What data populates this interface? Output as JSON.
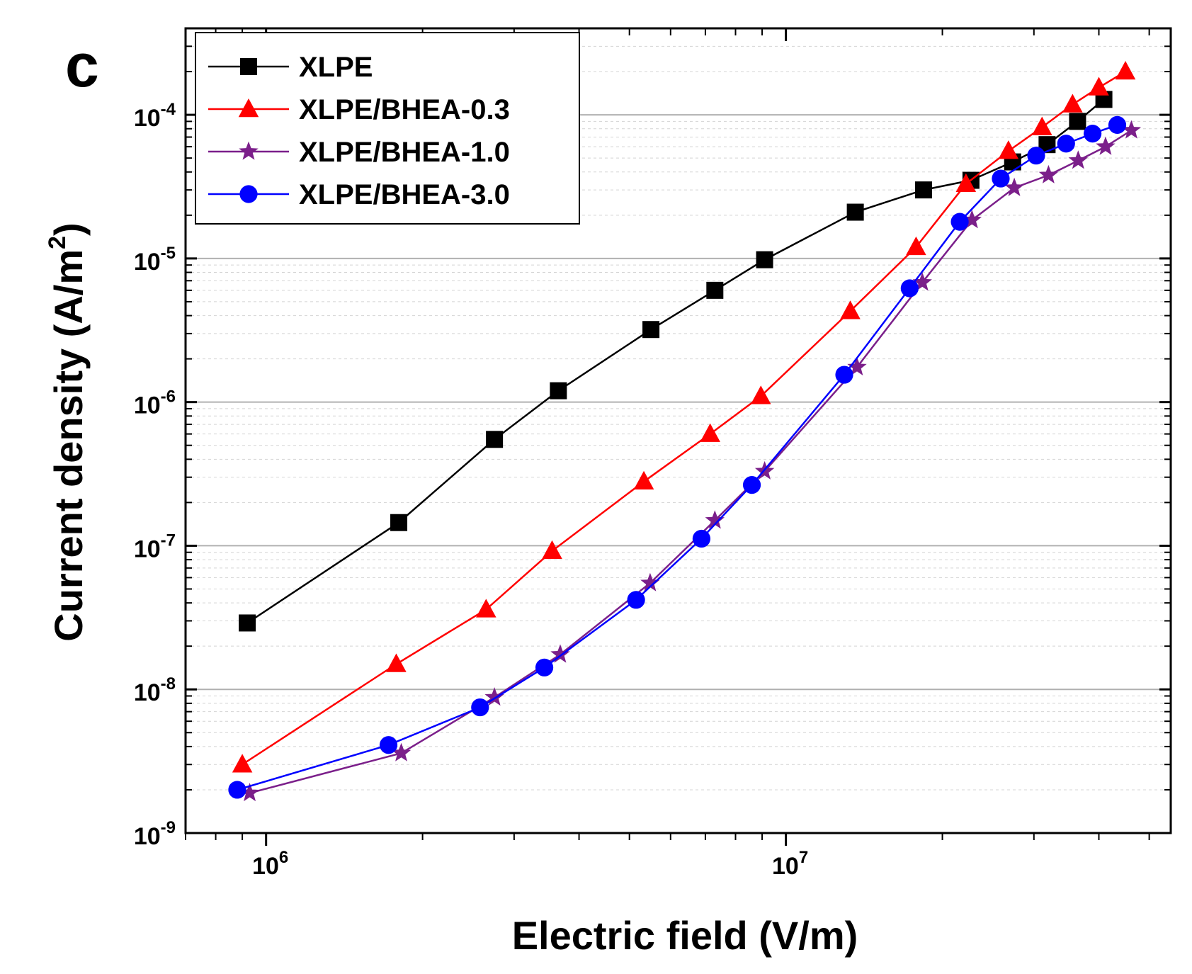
{
  "chart_data": {
    "type": "line",
    "panel_label": "c",
    "xlabel": "Electric field (V/m)",
    "ylabel_main": "Current density (A/m",
    "ylabel_sup": "2",
    "ylabel_end": ")",
    "xscale": "log",
    "yscale": "log",
    "xlim": [
      700000,
      55000000
    ],
    "ylim": [
      1e-09,
      0.0004
    ],
    "x_ticks": [
      {
        "value": 1000000,
        "base": "10",
        "exp": "6"
      },
      {
        "value": 10000000,
        "base": "10",
        "exp": "7"
      }
    ],
    "y_ticks": [
      {
        "value": 1e-09,
        "base": "10",
        "exp": "-9"
      },
      {
        "value": 1e-08,
        "base": "10",
        "exp": "-8"
      },
      {
        "value": 1e-07,
        "base": "10",
        "exp": "-7"
      },
      {
        "value": 1e-06,
        "base": "10",
        "exp": "-6"
      },
      {
        "value": 1e-05,
        "base": "10",
        "exp": "-5"
      },
      {
        "value": 0.0001,
        "base": "10",
        "exp": "-4"
      }
    ],
    "grid": true,
    "legend_position": "top-left",
    "series": [
      {
        "name": "XLPE",
        "color": "#000000",
        "marker": "square",
        "x": [
          920000,
          1800000,
          2750000,
          3650000,
          5500000,
          7300000,
          9100000,
          13600000,
          18400000,
          22700000,
          27300000,
          31800000,
          36400000,
          40900000
        ],
        "y": [
          2.9e-08,
          1.45e-07,
          5.5e-07,
          1.2e-06,
          3.2e-06,
          6e-06,
          9.8e-06,
          2.1e-05,
          3e-05,
          3.5e-05,
          4.7e-05,
          6.2e-05,
          9e-05,
          0.000128
        ]
      },
      {
        "name": "XLPE/BHEA-0.3",
        "color": "#ff0000",
        "marker": "triangle",
        "x": [
          900000,
          1780000,
          2650000,
          3550000,
          5330000,
          7150000,
          8950000,
          13300000,
          17800000,
          22200000,
          26800000,
          31100000,
          35600000,
          40000000,
          45000000
        ],
        "y": [
          3e-09,
          1.5e-08,
          3.6e-08,
          9.2e-08,
          2.8e-07,
          6e-07,
          1.1e-06,
          4.3e-06,
          1.2e-05,
          3.3e-05,
          5.6e-05,
          8.2e-05,
          0.000118,
          0.000155,
          0.0002
        ]
      },
      {
        "name": "XLPE/BHEA-1.0",
        "color": "#7b1f8a",
        "marker": "star",
        "x": [
          930000,
          1820000,
          2750000,
          3680000,
          5480000,
          7300000,
          9100000,
          13700000,
          18300000,
          22800000,
          27500000,
          32000000,
          36500000,
          41200000,
          46200000
        ],
        "y": [
          1.9e-09,
          3.6e-09,
          8.8e-09,
          1.75e-08,
          5.5e-08,
          1.5e-07,
          3.3e-07,
          1.75e-06,
          6.8e-06,
          1.85e-05,
          3.1e-05,
          3.8e-05,
          4.8e-05,
          6e-05,
          7.8e-05
        ]
      },
      {
        "name": "XLPE/BHEA-3.0",
        "color": "#0000ff",
        "marker": "circle",
        "x": [
          880000,
          1720000,
          2580000,
          3430000,
          5150000,
          6880000,
          8600000,
          12950000,
          17300000,
          21600000,
          25900000,
          30300000,
          34600000,
          38900000,
          43400000
        ],
        "y": [
          2e-09,
          4.1e-09,
          7.5e-09,
          1.42e-08,
          4.2e-08,
          1.12e-07,
          2.65e-07,
          1.55e-06,
          6.2e-06,
          1.8e-05,
          3.6e-05,
          5.2e-05,
          6.3e-05,
          7.4e-05,
          8.5e-05
        ]
      }
    ]
  }
}
